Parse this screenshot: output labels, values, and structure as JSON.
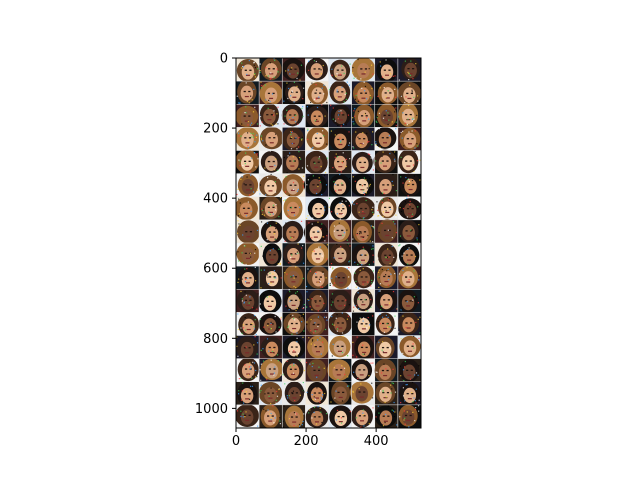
{
  "image": {
    "description_kind": "grid of generated face thumbnails",
    "grid_rows": 16,
    "grid_cols": 8,
    "x_extent": [
      0,
      528
    ],
    "y_extent": [
      0,
      1056
    ],
    "y_inverted": true
  },
  "axes": {
    "x_ticks": [
      "0",
      "200",
      "400"
    ],
    "x_tick_values": [
      0,
      200,
      400
    ],
    "y_ticks": [
      "0",
      "200",
      "400",
      "600",
      "800",
      "1000"
    ],
    "y_tick_values": [
      0,
      200,
      400,
      600,
      800,
      1000
    ]
  },
  "colors": {
    "background": "#ffffff",
    "axis": "#000000",
    "tile_border": "#e8e8e8"
  }
}
